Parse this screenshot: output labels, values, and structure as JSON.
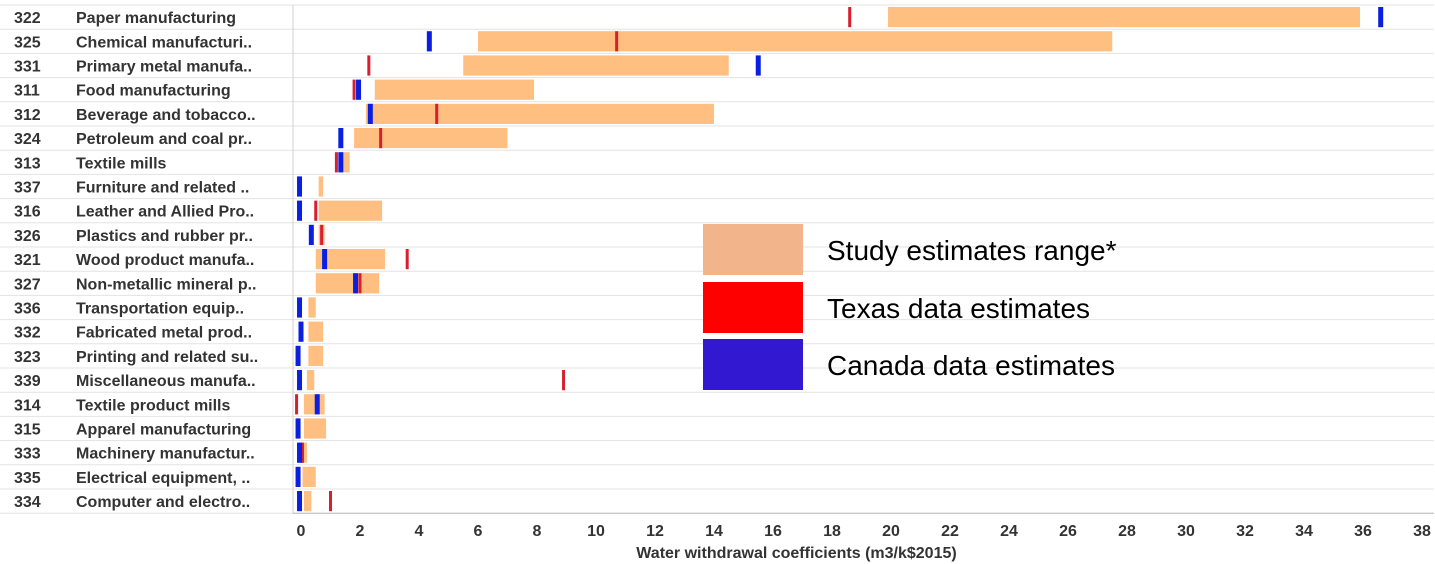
{
  "chart_data": {
    "type": "bar",
    "xlabel": "Water withdrawal coefficients (m3/k$2015)",
    "xlim": [
      -0.3,
      38.4
    ],
    "xticks": [
      0,
      2,
      4,
      6,
      8,
      10,
      12,
      14,
      16,
      18,
      20,
      22,
      24,
      26,
      28,
      30,
      32,
      34,
      36,
      38
    ],
    "grid": "horizontal",
    "legend_placement": "center-right",
    "colors": {
      "range": "#FFBF80",
      "texas": "#D91E2E",
      "canada": "#0A1FE0",
      "legend_range": "#F2B48A",
      "legend_texas": "#FF0000",
      "legend_canada": "#3318D2"
    },
    "series": [
      {
        "name": "Study estimates range*",
        "kind": "range"
      },
      {
        "name": "Texas data estimates",
        "kind": "marker"
      },
      {
        "name": "Canada data estimates",
        "kind": "marker"
      }
    ],
    "rows": [
      {
        "code": "322",
        "name": "Paper manufacturing",
        "range": [
          19.9,
          35.9
        ],
        "texas": 18.6,
        "canada": 36.6
      },
      {
        "code": "325",
        "name": "Chemical manufacturi..",
        "range": [
          6.0,
          27.5
        ],
        "texas": 10.7,
        "canada": 4.35
      },
      {
        "code": "331",
        "name": "Primary metal manufa..",
        "range": [
          5.5,
          14.5
        ],
        "texas": 2.3,
        "canada": 15.5
      },
      {
        "code": "311",
        "name": "Food manufacturing",
        "range": [
          2.5,
          7.9
        ],
        "texas": 1.8,
        "canada": 1.95
      },
      {
        "code": "312",
        "name": "Beverage and tobacco..",
        "range": [
          2.2,
          14.0
        ],
        "texas": 4.6,
        "canada": 2.35
      },
      {
        "code": "324",
        "name": "Petroleum and coal pr..",
        "range": [
          1.8,
          7.0
        ],
        "texas": 2.7,
        "canada": 1.35
      },
      {
        "code": "313",
        "name": "Textile mills",
        "range": [
          1.3,
          1.65
        ],
        "texas": 1.2,
        "canada": 1.35
      },
      {
        "code": "337",
        "name": "Furniture and related ..",
        "range": [
          0.6,
          0.75
        ],
        "texas": null,
        "canada": -0.05
      },
      {
        "code": "316",
        "name": "Leather and Allied Pro..",
        "range": [
          0.6,
          2.75
        ],
        "texas": 0.5,
        "canada": -0.05
      },
      {
        "code": "326",
        "name": "Plastics and rubber pr..",
        "range": [
          0.6,
          0.8
        ],
        "texas": 0.7,
        "canada": 0.35
      },
      {
        "code": "321",
        "name": "Wood product manufa..",
        "range": [
          0.5,
          2.85
        ],
        "texas": 3.6,
        "canada": 0.8
      },
      {
        "code": "327",
        "name": "Non-metallic mineral p..",
        "range": [
          0.5,
          2.65
        ],
        "texas": 2.0,
        "canada": 1.85
      },
      {
        "code": "336",
        "name": "Transportation equip..",
        "range": [
          0.25,
          0.5
        ],
        "texas": null,
        "canada": -0.05
      },
      {
        "code": "332",
        "name": "Fabricated metal prod..",
        "range": [
          0.25,
          0.75
        ],
        "texas": null,
        "canada": 0.0
      },
      {
        "code": "323",
        "name": "Printing and related su..",
        "range": [
          0.25,
          0.75
        ],
        "texas": null,
        "canada": -0.1
      },
      {
        "code": "339",
        "name": "Miscellaneous manufa..",
        "range": [
          0.2,
          0.45
        ],
        "texas": 8.9,
        "canada": -0.05
      },
      {
        "code": "314",
        "name": "Textile product mills",
        "range": [
          0.1,
          0.8
        ],
        "texas": -0.15,
        "canada": 0.55
      },
      {
        "code": "315",
        "name": "Apparel manufacturing",
        "range": [
          0.1,
          0.85
        ],
        "texas": null,
        "canada": -0.1
      },
      {
        "code": "333",
        "name": "Machinery manufactur..",
        "range": [
          0.05,
          0.2
        ],
        "texas": 0.05,
        "canada": -0.05
      },
      {
        "code": "335",
        "name": "Electrical equipment, ..",
        "range": [
          0.05,
          0.5
        ],
        "texas": null,
        "canada": -0.1
      },
      {
        "code": "334",
        "name": "Computer and electro..",
        "range": [
          0.1,
          0.35
        ],
        "texas": 1.0,
        "canada": -0.05
      }
    ]
  }
}
